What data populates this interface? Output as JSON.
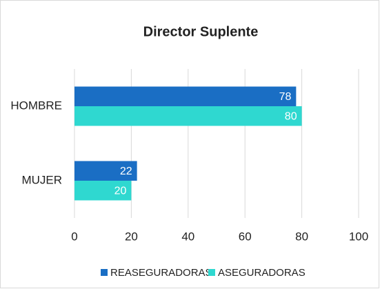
{
  "chart_data": {
    "type": "bar",
    "orientation": "horizontal",
    "title": "Director Suplente",
    "categories": [
      "HOMBRE",
      "MUJER"
    ],
    "series": [
      {
        "name": "REASEGURADORAS",
        "color": "#1a6ec4",
        "values": [
          78,
          22
        ]
      },
      {
        "name": "ASEGURADORAS",
        "color": "#2fd8d0",
        "values": [
          80,
          20
        ]
      }
    ],
    "xlim": [
      0,
      100
    ],
    "xticks": [
      0,
      20,
      40,
      60,
      80,
      100
    ],
    "grid": true,
    "legend": "bottom"
  }
}
